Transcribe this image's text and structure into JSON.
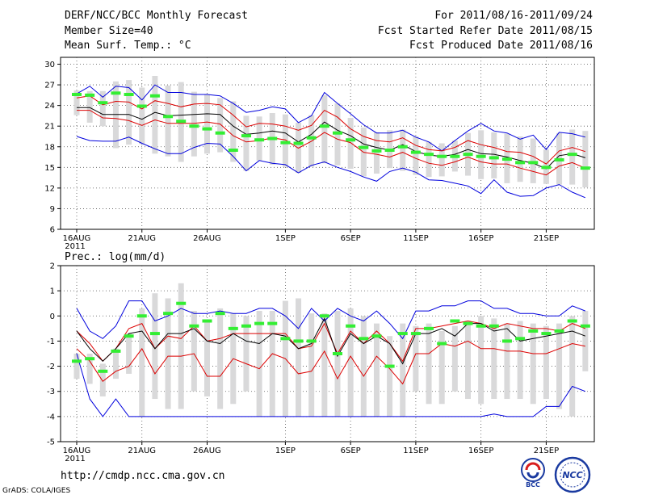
{
  "header": {
    "title": "DERF/NCC/BCC Monthly Forecast",
    "member_size": "Member Size=40",
    "variable": "Mean Surf. Temp.: °C",
    "period": "For 2011/08/16-2011/09/24",
    "fcst_started": "Fcst Started Refer Date 2011/08/15",
    "fcst_produced": "Fcst Produced Date 2011/08/16"
  },
  "footer": {
    "url": "http://cmdp.ncc.cma.gov.cn",
    "grads": "GrADS: COLA/IGES",
    "logo_bcc": "BCC",
    "logo_ncc": "NCC"
  },
  "colors": {
    "box": "#d9d9da",
    "median": "#000000",
    "mean": "#33ee33",
    "outer": "#0000dd",
    "inner": "#dd0000"
  },
  "chart_data": [
    {
      "type": "box-time-series",
      "title": "Mean Surf. Temp.: °C",
      "ylim": [
        6,
        31
      ],
      "yticks": [
        6,
        9,
        12,
        15,
        18,
        21,
        24,
        27,
        30
      ],
      "xticks": [
        {
          "day": 0,
          "label": "16AUG"
        },
        {
          "day": 5,
          "label": "21AUG"
        },
        {
          "day": 10,
          "label": "26AUG"
        },
        {
          "day": 16,
          "label": "1SEP"
        },
        {
          "day": 21,
          "label": "6SEP"
        },
        {
          "day": 26,
          "label": "11SEP"
        },
        {
          "day": 31,
          "label": "16SEP"
        },
        {
          "day": 36,
          "label": "21SEP"
        }
      ],
      "year_label": "2011",
      "days": 40,
      "series": {
        "max": [
          25.7,
          26.8,
          25.2,
          26.8,
          26.6,
          24.8,
          27.0,
          25.9,
          25.9,
          25.6,
          25.6,
          25.4,
          24.3,
          23.0,
          23.3,
          23.8,
          23.5,
          21.5,
          22.5,
          25.9,
          24.3,
          22.8,
          21.2,
          20.0,
          20.0,
          20.4,
          19.4,
          18.7,
          17.4,
          18.9,
          20.3,
          21.4,
          20.3,
          20.0,
          19.1,
          19.7,
          17.6,
          20.1,
          19.9,
          19.4
        ],
        "upper": [
          25.1,
          25.4,
          24.1,
          24.6,
          24.5,
          23.5,
          24.7,
          24.3,
          23.8,
          24.2,
          24.3,
          24.1,
          22.6,
          20.9,
          21.4,
          21.3,
          21.0,
          20.4,
          21.1,
          23.3,
          22.3,
          20.6,
          19.5,
          18.9,
          18.7,
          19.3,
          18.2,
          17.6,
          17.4,
          17.9,
          18.9,
          18.3,
          17.9,
          17.3,
          17.2,
          16.6,
          15.5,
          17.4,
          17.9,
          17.3
        ],
        "median": [
          23.7,
          23.7,
          22.7,
          22.7,
          22.7,
          22.0,
          23.0,
          22.5,
          22.6,
          22.7,
          22.8,
          22.7,
          21.0,
          19.8,
          20.0,
          20.3,
          20.0,
          18.7,
          19.8,
          21.6,
          20.4,
          19.6,
          18.4,
          17.9,
          17.5,
          18.3,
          17.3,
          16.8,
          16.6,
          16.9,
          17.6,
          17.0,
          16.9,
          16.5,
          16.0,
          15.6,
          14.8,
          16.7,
          17.0,
          16.4
        ],
        "lower": [
          23.3,
          23.3,
          22.2,
          22.1,
          21.8,
          21.1,
          21.9,
          21.4,
          21.4,
          21.4,
          21.6,
          21.3,
          19.6,
          18.7,
          18.9,
          19.3,
          19.0,
          17.8,
          18.8,
          20.1,
          19.1,
          18.6,
          17.2,
          16.9,
          16.5,
          17.2,
          16.3,
          15.6,
          15.3,
          15.8,
          16.5,
          15.8,
          15.5,
          15.5,
          14.9,
          14.4,
          13.9,
          15.2,
          15.7,
          14.9
        ],
        "min": [
          19.5,
          18.9,
          18.8,
          18.8,
          19.4,
          18.5,
          17.7,
          17.0,
          17.0,
          17.9,
          18.5,
          18.4,
          16.6,
          14.5,
          16.0,
          15.6,
          15.4,
          14.2,
          15.3,
          15.8,
          15.0,
          14.4,
          13.6,
          13.0,
          14.4,
          14.9,
          14.3,
          13.2,
          13.1,
          12.7,
          12.3,
          11.2,
          13.2,
          11.4,
          10.8,
          10.9,
          12.0,
          12.5,
          11.4,
          10.6
        ],
        "box_low": [
          22.6,
          21.5,
          21.0,
          17.8,
          18.3,
          18.4,
          17.0,
          16.6,
          15.8,
          16.6,
          17.0,
          17.2,
          15.8,
          14.5,
          16.0,
          15.4,
          15.1,
          14.2,
          15.1,
          15.6,
          15.3,
          14.8,
          13.7,
          14.1,
          14.9,
          14.5,
          13.9,
          13.6,
          13.7,
          14.4,
          13.8,
          13.3,
          13.4,
          12.7,
          12.9,
          12.7,
          12.6,
          12.5,
          12.5,
          12.1
        ],
        "box_high": [
          26.2,
          26.1,
          26.1,
          27.5,
          27.7,
          26.6,
          28.3,
          26.9,
          27.4,
          26.0,
          25.6,
          25.1,
          24.6,
          22.5,
          22.4,
          22.9,
          22.7,
          21.5,
          22.6,
          25.5,
          24.3,
          22.2,
          20.8,
          20.1,
          20.4,
          20.5,
          19.5,
          18.7,
          18.5,
          18.9,
          20.0,
          20.4,
          20.1,
          19.9,
          19.5,
          19.2,
          17.6,
          20.0,
          20.5,
          20.3
        ],
        "mean": [
          25.6,
          25.5,
          24.4,
          25.8,
          25.6,
          23.9,
          25.4,
          22.4,
          21.7,
          21.0,
          20.6,
          20.0,
          17.5,
          19.6,
          19.0,
          19.2,
          18.6,
          18.5,
          19.3,
          21.0,
          20.0,
          19.0,
          17.9,
          17.4,
          17.5,
          18.0,
          17.2,
          16.9,
          16.6,
          16.6,
          16.9,
          16.6,
          16.4,
          16.2,
          15.7,
          15.7,
          15.0,
          16.1,
          16.9,
          14.9
        ]
      }
    },
    {
      "type": "box-time-series",
      "title": "Prec.: log(mm/d)",
      "ylim": [
        -5,
        2
      ],
      "yticks": [
        -5,
        -4,
        -3,
        -2,
        -1,
        0,
        1,
        2
      ],
      "xticks": [
        {
          "day": 0,
          "label": "16AUG"
        },
        {
          "day": 5,
          "label": "21AUG"
        },
        {
          "day": 10,
          "label": "26AUG"
        },
        {
          "day": 16,
          "label": "1SEP"
        },
        {
          "day": 21,
          "label": "6SEP"
        },
        {
          "day": 26,
          "label": "11SEP"
        },
        {
          "day": 31,
          "label": "16SEP"
        },
        {
          "day": 36,
          "label": "21SEP"
        }
      ],
      "year_label": "2011",
      "days": 40,
      "series": {
        "max": [
          0.3,
          -0.6,
          -0.9,
          -0.4,
          0.6,
          0.6,
          -0.2,
          0.0,
          0.3,
          0.1,
          0.1,
          0.2,
          0.1,
          0.1,
          0.3,
          0.3,
          0.0,
          -0.5,
          0.3,
          -0.2,
          0.3,
          0.0,
          -0.2,
          0.2,
          -0.3,
          -0.9,
          0.2,
          0.2,
          0.4,
          0.4,
          0.6,
          0.6,
          0.3,
          0.3,
          0.1,
          0.1,
          0.0,
          0.0,
          0.4,
          0.2
        ],
        "upper": [
          -0.6,
          -1.1,
          -1.8,
          -1.3,
          -0.5,
          -0.3,
          -1.3,
          -0.8,
          -0.9,
          -0.4,
          -1.0,
          -0.9,
          -0.7,
          -0.7,
          -0.7,
          -0.7,
          -0.7,
          -1.3,
          -1.2,
          -0.3,
          -1.5,
          -0.6,
          -1.1,
          -0.6,
          -1.1,
          -1.8,
          -0.5,
          -0.5,
          -0.4,
          -0.3,
          -0.2,
          -0.3,
          -0.5,
          -0.3,
          -0.4,
          -0.5,
          -0.5,
          -0.6,
          -0.3,
          -0.5
        ],
        "median": [
          -0.6,
          -1.3,
          -1.8,
          -1.3,
          -0.7,
          -0.6,
          -1.3,
          -0.7,
          -0.7,
          -0.5,
          -1.0,
          -1.1,
          -0.7,
          -1.0,
          -1.1,
          -0.7,
          -0.8,
          -1.3,
          -1.1,
          -0.1,
          -1.6,
          -0.7,
          -1.1,
          -0.8,
          -1.1,
          -1.9,
          -0.7,
          -0.7,
          -0.5,
          -0.8,
          -0.3,
          -0.3,
          -0.6,
          -0.5,
          -1.0,
          -0.9,
          -0.8,
          -0.7,
          -0.6,
          -0.8
        ],
        "lower": [
          -1.3,
          -1.8,
          -2.6,
          -2.2,
          -2.0,
          -1.3,
          -2.3,
          -1.6,
          -1.6,
          -1.5,
          -2.4,
          -2.4,
          -1.7,
          -1.9,
          -2.1,
          -1.5,
          -1.7,
          -2.3,
          -2.2,
          -1.4,
          -2.5,
          -1.6,
          -2.4,
          -1.6,
          -2.1,
          -2.7,
          -1.5,
          -1.5,
          -1.1,
          -1.2,
          -1.0,
          -1.3,
          -1.3,
          -1.4,
          -1.4,
          -1.5,
          -1.5,
          -1.3,
          -1.1,
          -1.2
        ],
        "min": [
          -1.5,
          -3.3,
          -4.0,
          -3.3,
          -4.0,
          -4.0,
          -4.0,
          -4.0,
          -4.0,
          -4.0,
          -4.0,
          -4.0,
          -4.0,
          -4.0,
          -4.0,
          -4.0,
          -4.0,
          -4.0,
          -4.0,
          -4.0,
          -4.0,
          -4.0,
          -4.0,
          -4.0,
          -4.0,
          -4.0,
          -4.0,
          -4.0,
          -4.0,
          -4.0,
          -4.0,
          -4.0,
          -3.9,
          -4.0,
          -4.0,
          -4.0,
          -3.6,
          -3.6,
          -2.8,
          -3.0
        ],
        "box_low": [
          -2.5,
          -2.7,
          -3.2,
          -2.5,
          -2.3,
          -4.0,
          -3.3,
          -3.7,
          -3.7,
          -3.0,
          -3.2,
          -3.7,
          -3.5,
          -3.0,
          -4.0,
          -4.0,
          -4.0,
          -4.0,
          -4.0,
          -4.0,
          -4.0,
          -4.0,
          -4.0,
          -4.0,
          -4.0,
          -4.0,
          -3.0,
          -3.5,
          -3.5,
          -3.0,
          -3.3,
          -3.5,
          -3.3,
          -3.3,
          -3.3,
          -3.5,
          -3.3,
          -3.7,
          -4.0,
          -2.2
        ],
        "box_high": [
          -1.5,
          -1.5,
          -1.9,
          -1.3,
          -0.7,
          0.3,
          0.9,
          0.7,
          1.3,
          0.2,
          -0.2,
          0.3,
          0.1,
          0.0,
          0.2,
          0.2,
          0.6,
          0.7,
          0.1,
          0.1,
          0.2,
          0.3,
          0.0,
          -0.3,
          -0.8,
          -0.3,
          -0.4,
          -0.3,
          -0.6,
          -0.4,
          -0.2,
          0.0,
          -0.1,
          -0.3,
          -0.2,
          -0.3,
          -0.4,
          -0.3,
          0.0,
          0.2
        ],
        "mean": [
          -1.8,
          -1.7,
          -2.2,
          -1.4,
          -0.8,
          0.0,
          -0.7,
          0.1,
          0.5,
          -0.4,
          -0.2,
          0.1,
          -0.5,
          -0.4,
          -0.3,
          -0.3,
          -0.9,
          -1.0,
          -1.0,
          0.0,
          -1.5,
          -0.4,
          -0.9,
          -0.8,
          -2.0,
          -0.7,
          -0.7,
          -0.5,
          -1.1,
          -0.2,
          -0.3,
          -0.4,
          -0.4,
          -1.0,
          -0.9,
          -0.6,
          -0.7,
          -0.6,
          -0.2,
          -0.4
        ]
      }
    }
  ]
}
